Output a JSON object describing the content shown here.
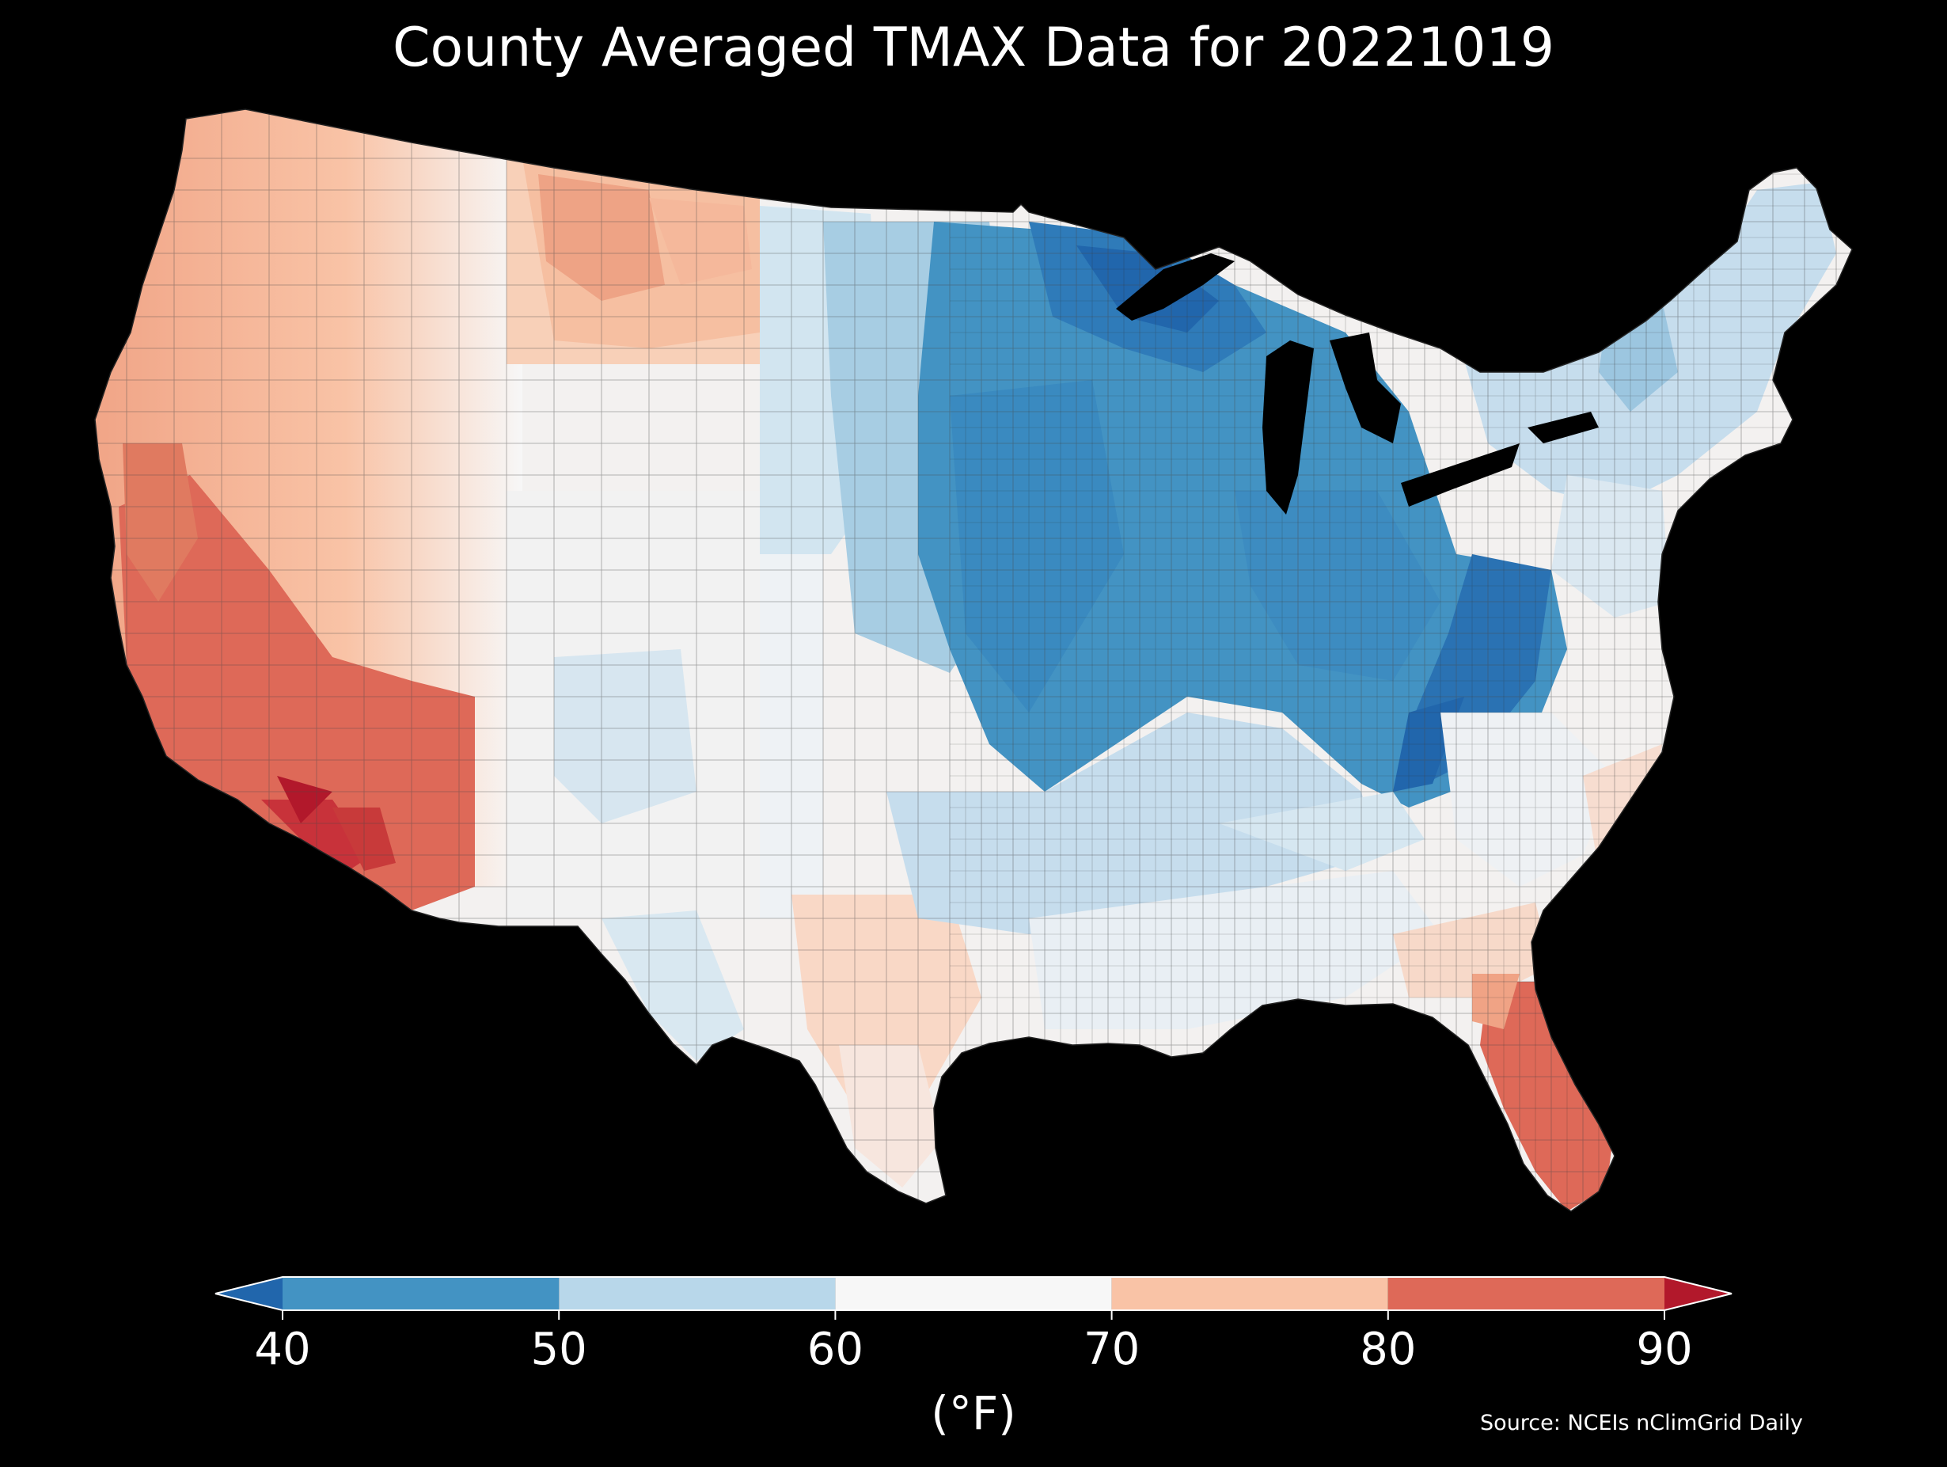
{
  "title": "County Averaged TMAX Data for 20221019",
  "colorbar": {
    "unit_label": "(°F)",
    "ticks": [
      "40",
      "50",
      "60",
      "70",
      "80",
      "90"
    ],
    "bins": [
      {
        "from": 40,
        "to": 50,
        "color": "#4393c3"
      },
      {
        "from": 50,
        "to": 60,
        "color": "#b8d7ea"
      },
      {
        "from": 60,
        "to": 70,
        "color": "#f7f7f7"
      },
      {
        "from": 70,
        "to": 80,
        "color": "#f9c3a6"
      },
      {
        "from": 80,
        "to": 90,
        "color": "#de6958"
      }
    ],
    "under_color": "#2166ac",
    "over_color": "#b2182b",
    "extend": "both"
  },
  "source": "Source: NCEIs nClimGrid Daily",
  "map": {
    "region": "Contiguous United States, county level",
    "variable": "TMAX",
    "date": "20221019",
    "regional_pattern": [
      {
        "region": "Southern California / Southwest Arizona deserts",
        "range_F": "above 90"
      },
      {
        "region": "California Central Valley and coast, southern Nevada, Arizona",
        "range_F": "80-90"
      },
      {
        "region": "Florida peninsula",
        "range_F": "80-90"
      },
      {
        "region": "Pacific Northwest, Great Basin, Montana",
        "range_F": "70-80"
      },
      {
        "region": "Georgia, Carolinas coast, south Texas",
        "range_F": "70-80"
      },
      {
        "region": "Rockies, southern Plains, Gulf coast",
        "range_F": "60-70"
      },
      {
        "region": "Northern Plains, Northeast",
        "range_F": "50-60"
      },
      {
        "region": "Upper Midwest, Great Lakes, Ohio Valley, Appalachians",
        "range_F": "40-50"
      },
      {
        "region": "Upper Michigan / northern Wisconsin / Minnesota arrowhead",
        "range_F": "below 40"
      }
    ]
  }
}
